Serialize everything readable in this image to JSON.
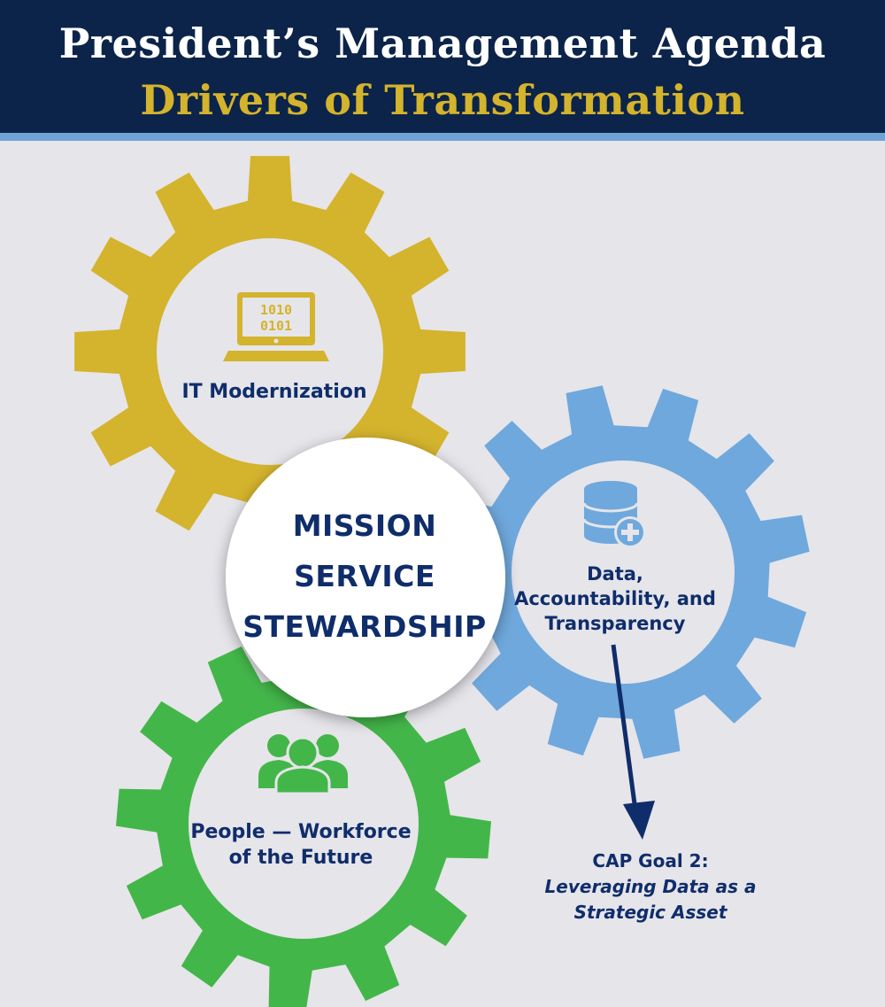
{
  "header": {
    "title": "President’s Management Agenda",
    "subtitle": "Drivers of Transformation"
  },
  "colors": {
    "header_bg": "#0c2449",
    "subtitle": "#d4b32d",
    "stripe": "#6fa3d8",
    "gear_it": "#d4b32d",
    "gear_data": "#6fa8dc",
    "gear_people": "#43b649",
    "text": "#0f2d6b"
  },
  "center": {
    "lines": [
      "MISSION",
      "SERVICE",
      "STEWARDSHIP"
    ]
  },
  "gears": {
    "it": {
      "label": "IT Modernization",
      "icon": "laptop-binary-icon",
      "binary_top": "1010",
      "binary_bottom": "0101"
    },
    "data": {
      "label_lines": [
        "Data,",
        "Accountability, and",
        "Transparency"
      ],
      "icon": "database-plus-icon"
    },
    "people": {
      "label_lines": [
        "People — Workforce",
        "of the Future"
      ],
      "icon": "people-group-icon"
    }
  },
  "cap_goal": {
    "title": "CAP Goal 2:",
    "subtitle_lines": [
      "Leveraging Data as a",
      "Strategic Asset"
    ]
  }
}
